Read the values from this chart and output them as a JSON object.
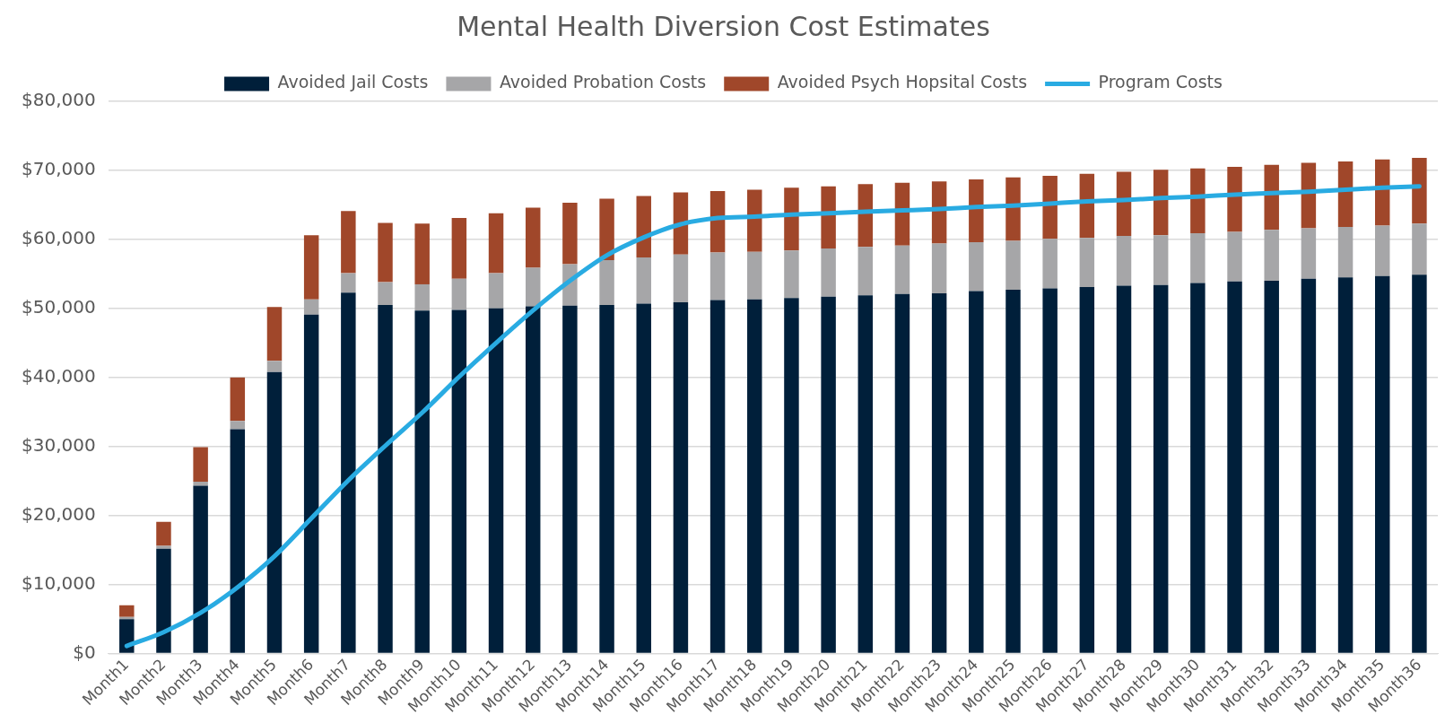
{
  "chart_data": {
    "type": "bar",
    "title": "Mental Health Diversion Cost Estimates",
    "stacked": true,
    "grid": "y",
    "legend": "top",
    "categories": [
      "Month1",
      "Month2",
      "Month3",
      "Month4",
      "Month5",
      "Month6",
      "Month7",
      "Month8",
      "Month9",
      "Month10",
      "Month11",
      "Month12",
      "Month13",
      "Month14",
      "Month15",
      "Month16",
      "Month17",
      "Month18",
      "Month19",
      "Month20",
      "Month21",
      "Month22",
      "Month23",
      "Month24",
      "Month25",
      "Month26",
      "Month27",
      "Month28",
      "Month29",
      "Month30",
      "Month31",
      "Month32",
      "Month33",
      "Month34",
      "Month35",
      "Month36"
    ],
    "ylim": [
      0,
      80000
    ],
    "yticks": [
      {
        "value": 0,
        "label": "$0"
      },
      {
        "value": 10000,
        "label": "$10,000"
      },
      {
        "value": 20000,
        "label": "$20,000"
      },
      {
        "value": 30000,
        "label": "$30,000"
      },
      {
        "value": 40000,
        "label": "$40,000"
      },
      {
        "value": 50000,
        "label": "$50,000"
      },
      {
        "value": 60000,
        "label": "$60,000"
      },
      {
        "value": 70000,
        "label": "$70,000"
      },
      {
        "value": 80000,
        "label": "$80,000"
      }
    ],
    "series": [
      {
        "name": "Avoided Jail Costs",
        "color": "#001f3a",
        "values": [
          5000,
          15200,
          24300,
          32500,
          40800,
          49100,
          52300,
          50500,
          49700,
          49800,
          50000,
          50300,
          50400,
          50500,
          50700,
          50900,
          51200,
          51300,
          51500,
          51700,
          51900,
          52100,
          52200,
          52500,
          52700,
          52900,
          53100,
          53300,
          53400,
          53700,
          53900,
          54000,
          54300,
          54500,
          54700,
          54900
        ]
      },
      {
        "name": "Avoided Probation Costs",
        "color": "#a6a6a8",
        "values": [
          300,
          400,
          600,
          1200,
          1600,
          2200,
          2800,
          3300,
          3800,
          4500,
          5100,
          5600,
          6000,
          6500,
          6700,
          6900,
          6900,
          6900,
          6900,
          7000,
          7000,
          7000,
          7200,
          7100,
          7100,
          7200,
          7100,
          7200,
          7200,
          7200,
          7200,
          7400,
          7300,
          7300,
          7300,
          7400
        ]
      },
      {
        "name": "Avoided Psych Hopsital Costs",
        "color": "#a0472a",
        "values": [
          1700,
          3500,
          5000,
          6300,
          7800,
          9300,
          9000,
          8600,
          8800,
          8800,
          8700,
          8700,
          8900,
          8900,
          8900,
          9000,
          8900,
          9000,
          9100,
          9000,
          9100,
          9100,
          9000,
          9100,
          9200,
          9100,
          9300,
          9300,
          9500,
          9400,
          9400,
          9400,
          9500,
          9500,
          9600,
          9500
        ]
      },
      {
        "name": "Program Costs",
        "type": "line",
        "color": "#29abe2",
        "marker": "none",
        "values": [
          1100,
          3100,
          5900,
          9600,
          14100,
          19600,
          25100,
          30100,
          34900,
          40100,
          45000,
          49700,
          54000,
          57700,
          60300,
          62200,
          63100,
          63300,
          63600,
          63800,
          64000,
          64200,
          64400,
          64700,
          64900,
          65200,
          65500,
          65700,
          66000,
          66200,
          66500,
          66700,
          66900,
          67200,
          67500,
          67700
        ]
      }
    ]
  }
}
